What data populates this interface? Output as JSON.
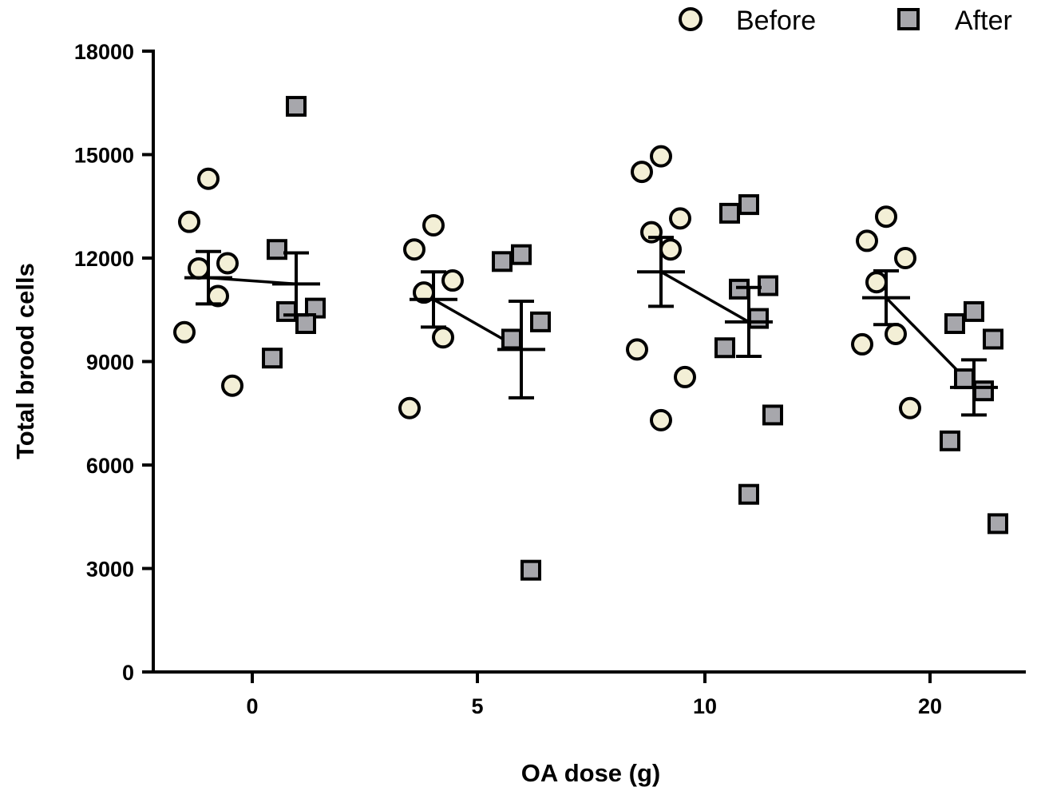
{
  "chart_data": {
    "type": "scatter",
    "title": "",
    "xlabel": "OA dose (g)",
    "ylabel": "Total brood cells",
    "ylim": [
      0,
      18000
    ],
    "yticks": [
      "0",
      "3000",
      "6000",
      "9000",
      "12000",
      "15000",
      "18000"
    ],
    "categories": [
      "0",
      "5",
      "10",
      "20"
    ],
    "legend": {
      "position": "top-right",
      "entries": [
        {
          "name": "Before",
          "marker": "circle"
        },
        {
          "name": "After",
          "marker": "square"
        }
      ]
    },
    "colors": {
      "before_fill": "#f3efd6",
      "after_fill": "#a7a7ac",
      "stroke": "#000000"
    },
    "series": [
      {
        "name": "Before",
        "marker": "circle",
        "groups": [
          {
            "category": "0",
            "points": [
              14300,
              13050,
              11850,
              11700,
              10900,
              9850,
              8300
            ],
            "mean": 11430,
            "sem": 760
          },
          {
            "category": "5",
            "points": [
              12950,
              12250,
              11350,
              11000,
              9700,
              7650
            ],
            "mean": 10800,
            "sem": 800
          },
          {
            "category": "10",
            "points": [
              14950,
              14500,
              13150,
              12750,
              12250,
              9350,
              8550,
              7300
            ],
            "mean": 11600,
            "sem": 1000
          },
          {
            "category": "20",
            "points": [
              13200,
              12500,
              12000,
              11300,
              9800,
              9500,
              7650
            ],
            "mean": 10850,
            "sem": 780
          }
        ]
      },
      {
        "name": "After",
        "marker": "square",
        "groups": [
          {
            "category": "0",
            "points": [
              16400,
              12250,
              10550,
              10450,
              10100,
              9100
            ],
            "mean": 11250,
            "sem": 900
          },
          {
            "category": "5",
            "points": [
              12100,
              11900,
              10150,
              9650,
              2950
            ],
            "mean": 9350,
            "sem": 1400
          },
          {
            "category": "10",
            "points": [
              13550,
              13300,
              11200,
              11100,
              10250,
              9400,
              7450,
              5150
            ],
            "mean": 10150,
            "sem": 1000
          },
          {
            "category": "20",
            "points": [
              10450,
              10100,
              9650,
              8500,
              8150,
              6700,
              4300
            ],
            "mean": 8250,
            "sem": 800
          }
        ]
      }
    ]
  }
}
